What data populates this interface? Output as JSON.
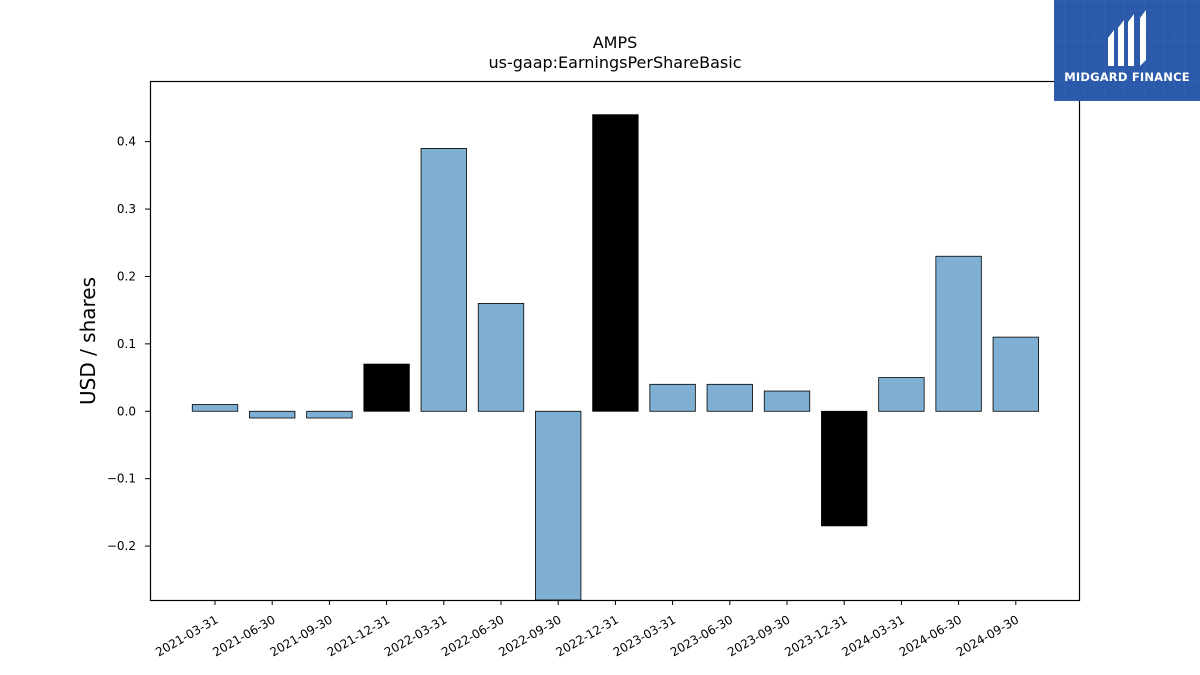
{
  "chart_data": {
    "type": "bar",
    "title": "AMPS",
    "subtitle": "us-gaap:EarningsPerShareBasic",
    "xlabel": "",
    "ylabel": "USD / shares",
    "categories": [
      "2021-03-31",
      "2021-06-30",
      "2021-09-30",
      "2021-12-31",
      "2022-03-31",
      "2022-06-30",
      "2022-09-30",
      "2022-12-31",
      "2023-03-31",
      "2023-06-30",
      "2023-09-30",
      "2023-12-31",
      "2024-03-31",
      "2024-06-30",
      "2024-09-30"
    ],
    "values": [
      0.01,
      -0.01,
      -0.01,
      0.07,
      0.39,
      0.16,
      -0.3,
      0.44,
      0.04,
      0.04,
      0.03,
      -0.17,
      0.05,
      0.23,
      0.11
    ],
    "highlight": [
      false,
      false,
      false,
      true,
      false,
      false,
      false,
      true,
      false,
      false,
      false,
      true,
      false,
      false,
      false
    ],
    "ylim": [
      -0.28,
      0.49
    ],
    "yticks": [
      -0.2,
      -0.1,
      0.0,
      0.1,
      0.2,
      0.3,
      0.4
    ],
    "ytick_labels": [
      "−0.2",
      "−0.1",
      "0.0",
      "0.1",
      "0.2",
      "0.3",
      "0.4"
    ],
    "grid": false,
    "colors": {
      "bar": "#7fb0d3",
      "highlight": "#000000",
      "edge": "#000000"
    }
  },
  "logo": {
    "text": "MIDGARD FINANCE",
    "icon": "midgard-m-icon",
    "background": "#2b5aaa"
  }
}
